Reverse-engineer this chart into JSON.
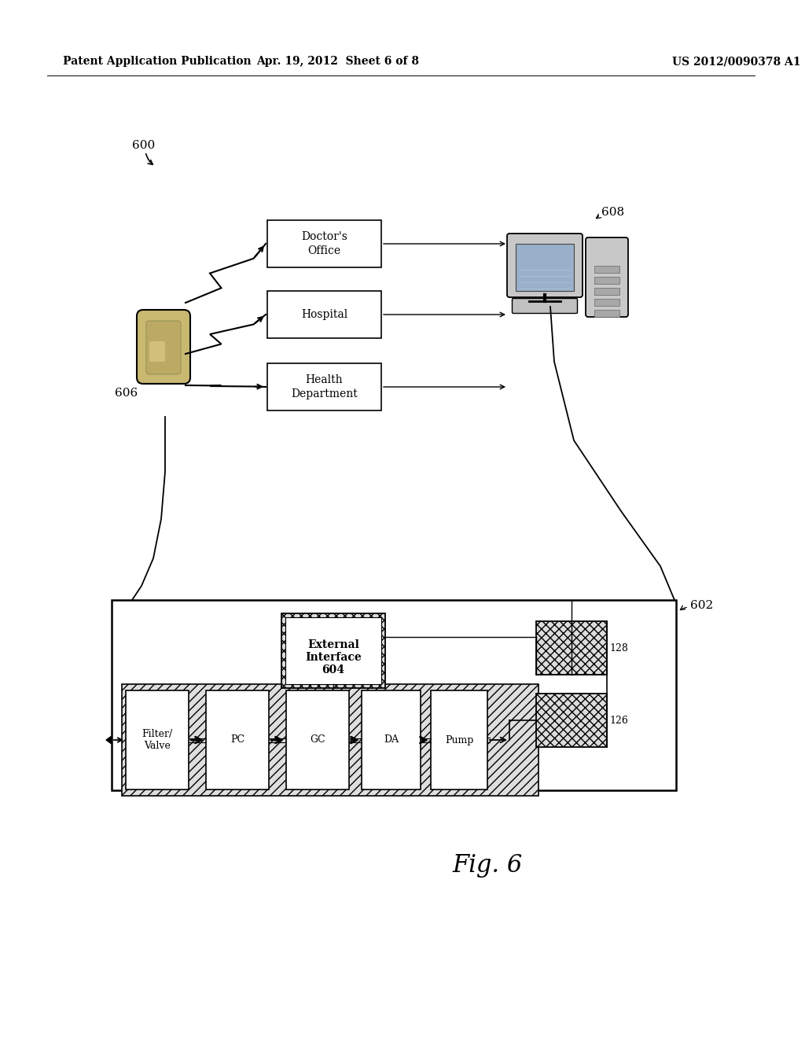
{
  "header_left": "Patent Application Publication",
  "header_center": "Apr. 19, 2012  Sheet 6 of 8",
  "header_right": "US 2012/0090378 A1",
  "fig_label": "Fig. 6",
  "label_600": "600",
  "label_602": "602",
  "label_606": "606",
  "label_608": "608",
  "label_128": "128",
  "label_126": "126",
  "box1_text": "Doctor's\nOffice",
  "box2_text": "Hospital",
  "box3_text": "Health\nDepartment",
  "ei_text": "External\nInterface\n604",
  "pipe_components": [
    "Filter/\nValve",
    "PC",
    "GC",
    "DA",
    "Pump"
  ],
  "pipe_comp_x": [
    160,
    262,
    364,
    460,
    548
  ],
  "pipe_comp_w": [
    80,
    80,
    80,
    75,
    72
  ],
  "bg_color": "#ffffff",
  "line_color": "#000000",
  "box_fill": "#ffffff",
  "hatch_fill": "#e8e8e8",
  "device_color": "#c8b870"
}
